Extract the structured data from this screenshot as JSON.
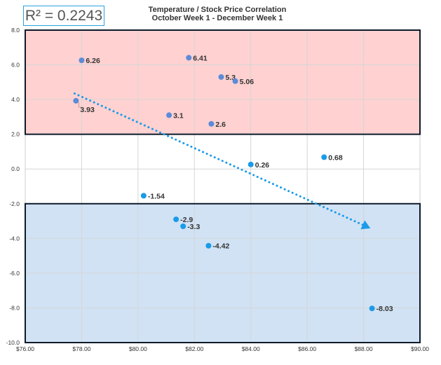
{
  "r_squared_label": "R² = 0.2243",
  "chart_data": {
    "type": "scatter",
    "title": "Temperature / Stock Price Correlation",
    "subtitle": "October  Week 1 - December Week 1",
    "xlim": [
      76,
      90
    ],
    "ylim": [
      -10,
      8
    ],
    "x_ticks": [
      76,
      78,
      80,
      82,
      84,
      86,
      88,
      90
    ],
    "x_tick_labels": [
      "$76.00",
      "$78.00",
      "$80.00",
      "$82.00",
      "$84.00",
      "$86.00",
      "$88.00",
      "$90.00"
    ],
    "y_ticks": [
      8,
      6,
      4,
      2,
      0,
      -2,
      -4,
      -6,
      -8,
      -10
    ],
    "y_tick_labels": [
      "8.0",
      "6.0",
      "4.0",
      "2.0",
      "0.0",
      "-2.0",
      "-4.0",
      "-6.0",
      "-8.0",
      "-10.0"
    ],
    "grid": true,
    "bands": [
      {
        "name": "positive-band",
        "y_from": 2,
        "y_to": 8,
        "color": "#ffd1d1"
      },
      {
        "name": "negative-band",
        "y_from": -10,
        "y_to": -2,
        "color": "#d0e2f4"
      }
    ],
    "points": [
      {
        "x": 78.0,
        "y": 6.26,
        "label": "6.26",
        "color": "#5b8bd9"
      },
      {
        "x": 81.8,
        "y": 6.41,
        "label": "6.41",
        "color": "#5b8bd9"
      },
      {
        "x": 82.95,
        "y": 5.3,
        "label": "5.3",
        "color": "#5b8bd9"
      },
      {
        "x": 83.45,
        "y": 5.06,
        "label": "5.06",
        "color": "#5b8bd9"
      },
      {
        "x": 77.8,
        "y": 3.93,
        "label": "3.93",
        "color": "#5b8bd9"
      },
      {
        "x": 81.1,
        "y": 3.1,
        "label": "3.1",
        "color": "#5b8bd9"
      },
      {
        "x": 82.6,
        "y": 2.6,
        "label": "2.6",
        "color": "#5b8bd9"
      },
      {
        "x": 84.0,
        "y": 0.26,
        "label": "0.26",
        "color": "#1a9be8"
      },
      {
        "x": 86.6,
        "y": 0.68,
        "label": "0.68",
        "color": "#1a9be8"
      },
      {
        "x": 80.2,
        "y": -1.54,
        "label": "-1.54",
        "color": "#1a9be8"
      },
      {
        "x": 81.35,
        "y": -2.9,
        "label": "-2.9",
        "color": "#1a9be8"
      },
      {
        "x": 81.6,
        "y": -3.3,
        "label": "-3.3",
        "color": "#1a9be8"
      },
      {
        "x": 82.5,
        "y": -4.42,
        "label": "-4.42",
        "color": "#1a9be8"
      },
      {
        "x": 88.3,
        "y": -8.03,
        "label": "-8.03",
        "color": "#1a9be8"
      }
    ],
    "trendline": {
      "x_start": 77.75,
      "y_start": 4.35,
      "x_end": 88.15,
      "y_end": -3.35,
      "color": "#1a9be8",
      "style": "dotted",
      "arrow": "end"
    }
  }
}
